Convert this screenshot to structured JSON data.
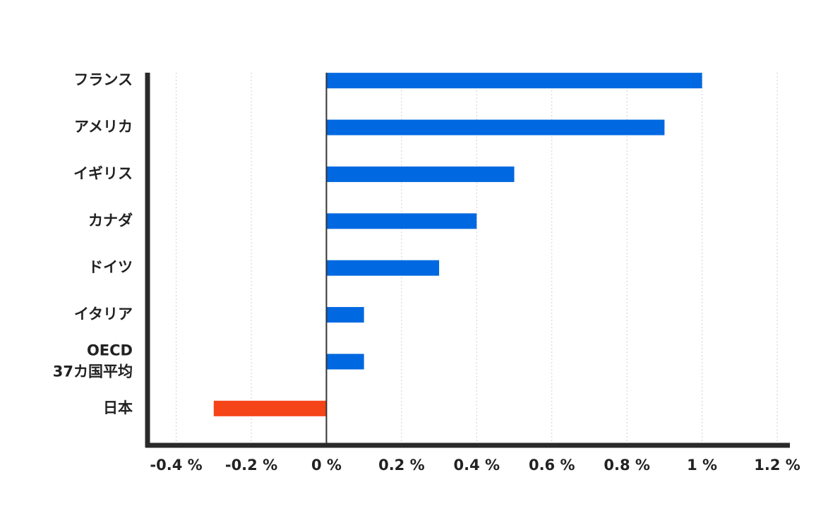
{
  "chart_data": {
    "type": "barh",
    "categories": [
      "フランス",
      "アメリカ",
      "イギリス",
      "カナダ",
      "ドイツ",
      "イタリア",
      "OECD\n37カ国平均",
      "日本"
    ],
    "values": [
      1.0,
      0.9,
      0.5,
      0.4,
      0.3,
      0.1,
      0.1,
      -0.3
    ],
    "colors": [
      "#0068e0",
      "#0068e0",
      "#0068e0",
      "#0068e0",
      "#0068e0",
      "#0068e0",
      "#0068e0",
      "#f44418"
    ],
    "xlim": [
      -0.48,
      1.23
    ],
    "xticks": [
      {
        "value": -0.4,
        "label": "-0.4 %"
      },
      {
        "value": -0.2,
        "label": "-0.2 %"
      },
      {
        "value": 0,
        "label": "0 %"
      },
      {
        "value": 0.2,
        "label": "0.2 %"
      },
      {
        "value": 0.4,
        "label": "0.4 %"
      },
      {
        "value": 0.6,
        "label": "0.6 %"
      },
      {
        "value": 0.8,
        "label": "0.8 %"
      },
      {
        "value": 1,
        "label": "1 %"
      },
      {
        "value": 1.2,
        "label": "1.2 %"
      }
    ],
    "grid": true
  }
}
